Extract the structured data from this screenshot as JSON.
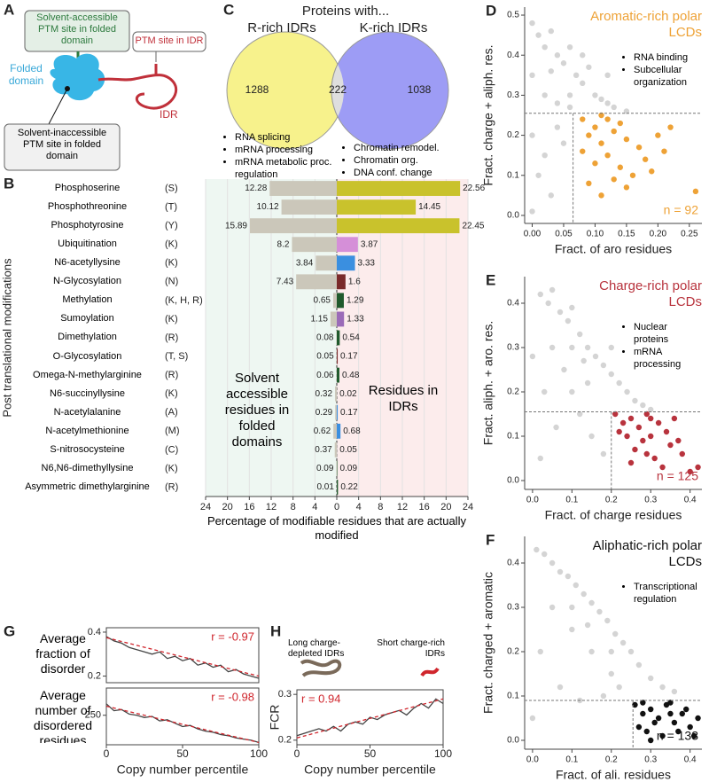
{
  "diagram": {
    "label": "A",
    "accessible_site": "Solvent-accessible PTM site in folded domain",
    "folded_domain": "Folded domain",
    "idr_site": "PTM site in IDR",
    "idr": "IDR",
    "inaccessible_site": "Solvent-inaccessible PTM site in folded domain"
  },
  "chart_data": [
    {
      "type": "bar",
      "panel_label": "B",
      "ylabel": "Post translational modifications",
      "xlabel": "Percentage of modifiable residues that are actually modified",
      "categories": [
        "Phosphoserine",
        "Phosphothreonine",
        "Phosphotyrosine",
        "Ubiquitination",
        "N6-acetyllysine",
        "N-Glycosylation",
        "Methylation",
        "Sumoylation",
        "Dimethylation",
        "O-Glycosylation",
        "Omega-N-methylarginine",
        "N6-succinyllysine",
        "N-acetylalanine",
        "N-acetylmethionine",
        "S-nitrosocysteine",
        "N6,N6-dimethyllysine",
        "Asymmetric dimethylarginine"
      ],
      "residue_codes": [
        "(S)",
        "(T)",
        "(Y)",
        "(K)",
        "(K)",
        "(N)",
        "(K, H, R)",
        "(K)",
        "(R)",
        "(T, S)",
        "(R)",
        "(K)",
        "(A)",
        "(M)",
        "(C)",
        "(K)",
        "(R)"
      ],
      "series": [
        {
          "name": "Solvent accessible residues in folded domains",
          "direction": "left",
          "color": "#cbc7ba",
          "values": [
            12.28,
            10.12,
            15.89,
            8.2,
            3.84,
            7.43,
            0.65,
            1.15,
            0.08,
            0.05,
            0.06,
            0.32,
            0.29,
            0.62,
            0.37,
            0.09,
            0.01
          ]
        },
        {
          "name": "Residues in IDRs",
          "direction": "right",
          "colors": [
            "#c9c22c",
            "#c9c22c",
            "#c9c22c",
            "#d58fd8",
            "#3a8fe0",
            "#7a2a2a",
            "#1f5a2c",
            "#9b6bb8",
            "#1f5a2c",
            "#7a2a2a",
            "#1f5a2c",
            "#aaaaaa",
            "#3a8fe0",
            "#3a8fe0",
            "#aaaaaa",
            "#1f5a2c",
            "#1f5a2c"
          ],
          "values": [
            22.56,
            14.45,
            22.45,
            3.87,
            3.33,
            1.6,
            1.29,
            1.33,
            0.54,
            0.17,
            0.48,
            0.02,
            0.17,
            0.68,
            0.05,
            0.09,
            0.22
          ]
        }
      ],
      "xlim": [
        -24,
        24
      ],
      "xticks": [
        {
          "value": -24,
          "label": "24"
        },
        {
          "value": -20,
          "label": "20"
        },
        {
          "value": -16,
          "label": "16"
        },
        {
          "value": -12,
          "label": "12"
        },
        {
          "value": -8,
          "label": "8"
        },
        {
          "value": -4,
          "label": "4"
        },
        0,
        4,
        8,
        12,
        16,
        20,
        24
      ],
      "grid": true
    },
    {
      "type": "venn",
      "panel_label": "C",
      "title": "Proteins with...",
      "sets": [
        {
          "name": "R-rich IDRs",
          "color": "#f7f28c",
          "notes": [
            "RNA splicing",
            "mRNA processing",
            "mRNA metabolic proc. regulation"
          ]
        },
        {
          "name": "K-rich IDRs",
          "color": "#9d9cf5",
          "notes": [
            "Chromatin remodel.",
            "Chromatin org.",
            "DNA conf. change"
          ]
        }
      ],
      "values": [
        1288,
        222,
        1038
      ],
      "overlap_color": "#dedede"
    },
    {
      "type": "scatter",
      "panel_label": "D",
      "title": "Aromatic-rich polar LCDs",
      "notes": [
        "RNA binding",
        "Subcellular organization"
      ],
      "annotation": "n = 92",
      "xlabel": "Fract. of aro residues",
      "ylabel": "Fract. charge + aliph. res.",
      "xlim": [
        -0.012,
        0.27
      ],
      "ylim": [
        -0.02,
        0.52
      ],
      "xticks": [
        {
          "value": 0,
          "label": "0.00"
        },
        0.05,
        {
          "value": 0.1,
          "label": "0.10"
        },
        0.15,
        {
          "value": 0.2,
          "label": "0.20"
        },
        0.25
      ],
      "yticks": [
        {
          "value": 0,
          "label": "0.0"
        },
        0.1,
        0.2,
        0.3,
        0.4,
        0.5
      ],
      "thresholds": {
        "x": 0.065,
        "y": 0.255
      },
      "series": [
        {
          "color": "#d4d4d4",
          "x": [
            0,
            0.01,
            0.02,
            0.03,
            0.04,
            0.05,
            0.06,
            0.07,
            0.08,
            0.09,
            0.1,
            0.11,
            0.12,
            0.13,
            0,
            0.02,
            0.04,
            0.06,
            0,
            0.02,
            0.04,
            0.01,
            0.03,
            0,
            0.05,
            0.15,
            0.12,
            0.08,
            0.03,
            0.06
          ],
          "values": [
            0.48,
            0.45,
            0.42,
            0.46,
            0.4,
            0.38,
            0.42,
            0.35,
            0.33,
            0.37,
            0.3,
            0.29,
            0.28,
            0.27,
            0.35,
            0.3,
            0.28,
            0.3,
            0.2,
            0.15,
            0.22,
            0.1,
            0.05,
            0.01,
            0.18,
            0.26,
            0.35,
            0.4,
            0.36,
            0.27
          ]
        },
        {
          "color": "#eea236",
          "x": [
            0.08,
            0.09,
            0.1,
            0.11,
            0.12,
            0.13,
            0.14,
            0.15,
            0.16,
            0.17,
            0.1,
            0.09,
            0.12,
            0.18,
            0.2,
            0.21,
            0.22,
            0.26,
            0.11,
            0.13,
            0.14,
            0.15,
            0.19,
            0.08,
            0.11
          ],
          "values": [
            0.24,
            0.2,
            0.22,
            0.18,
            0.15,
            0.21,
            0.12,
            0.19,
            0.1,
            0.17,
            0.13,
            0.08,
            0.24,
            0.14,
            0.2,
            0.16,
            0.22,
            0.06,
            0.05,
            0.09,
            0.23,
            0.07,
            0.11,
            0.16,
            0.25
          ]
        }
      ]
    },
    {
      "type": "scatter",
      "panel_label": "E",
      "title": "Charge-rich polar LCDs",
      "notes": [
        "Nuclear proteins",
        "mRNA processing"
      ],
      "annotation": "n = 125",
      "xlabel": "Fract. of charge residues",
      "ylabel": "Fract. aliph. + aro. res.",
      "xlim": [
        -0.02,
        0.43
      ],
      "ylim": [
        -0.02,
        0.46
      ],
      "xticks": [
        {
          "value": 0,
          "label": "0.0"
        },
        0.1,
        0.2,
        0.3,
        0.4
      ],
      "yticks": [
        {
          "value": 0,
          "label": "0.0"
        },
        0.1,
        0.2,
        0.3,
        0.4
      ],
      "thresholds": {
        "x": 0.2,
        "y": 0.155
      },
      "series": [
        {
          "color": "#d4d4d4",
          "x": [
            0.02,
            0.04,
            0.05,
            0.07,
            0.09,
            0.1,
            0.12,
            0.14,
            0.16,
            0.18,
            0.2,
            0.22,
            0.24,
            0.26,
            0.28,
            0.3,
            0.05,
            0.08,
            0.1,
            0.12,
            0.03,
            0.06,
            0.02,
            0,
            0.15,
            0.18,
            0.14,
            0.1,
            0.2,
            0.13
          ],
          "values": [
            0.42,
            0.4,
            0.43,
            0.38,
            0.36,
            0.39,
            0.33,
            0.3,
            0.28,
            0.26,
            0.24,
            0.22,
            0.2,
            0.18,
            0.17,
            0.16,
            0.3,
            0.25,
            0.2,
            0.15,
            0.2,
            0.12,
            0.05,
            0.28,
            0.1,
            0.06,
            0.22,
            0.3,
            0.3,
            0.27
          ]
        },
        {
          "color": "#b8333d",
          "x": [
            0.21,
            0.23,
            0.25,
            0.27,
            0.29,
            0.3,
            0.32,
            0.34,
            0.35,
            0.37,
            0.38,
            0.24,
            0.26,
            0.28,
            0.31,
            0.33,
            0.4,
            0.42,
            0.22,
            0.3,
            0.36,
            0.25,
            0.29
          ],
          "values": [
            0.15,
            0.13,
            0.14,
            0.12,
            0.15,
            0.1,
            0.13,
            0.11,
            0.08,
            0.09,
            0.06,
            0.1,
            0.07,
            0.09,
            0.05,
            0.03,
            0.02,
            0.03,
            0.11,
            0.14,
            0.14,
            0.04,
            0.06
          ]
        }
      ]
    },
    {
      "type": "scatter",
      "panel_label": "F",
      "title": "Aliphatic-rich polar LCDs",
      "notes": [
        "Transcriptional regulation"
      ],
      "annotation": "n = 133",
      "xlabel": "Fract. of ali. residues",
      "ylabel": "Fract. charged + aromatic",
      "xlim": [
        -0.02,
        0.43
      ],
      "ylim": [
        -0.02,
        0.46
      ],
      "xticks": [
        {
          "value": 0,
          "label": "0.0"
        },
        0.1,
        0.2,
        0.3,
        0.4
      ],
      "yticks": [
        {
          "value": 0,
          "label": "0.0"
        },
        0.1,
        0.2,
        0.3,
        0.4
      ],
      "thresholds": {
        "x": 0.255,
        "y": 0.09
      },
      "series": [
        {
          "color": "#d4d4d4",
          "x": [
            0.01,
            0.03,
            0.05,
            0.07,
            0.09,
            0.11,
            0.13,
            0.15,
            0.17,
            0.19,
            0.21,
            0.23,
            0.25,
            0.27,
            0.3,
            0.33,
            0.36,
            0.05,
            0.1,
            0.15,
            0.2,
            0.02,
            0.07,
            0.12,
            0.18,
            0,
            0.1,
            0.2,
            0.14,
            0.22
          ],
          "values": [
            0.43,
            0.42,
            0.4,
            0.38,
            0.37,
            0.35,
            0.33,
            0.31,
            0.29,
            0.27,
            0.24,
            0.22,
            0.2,
            0.17,
            0.14,
            0.12,
            0.11,
            0.3,
            0.25,
            0.2,
            0.15,
            0.2,
            0.12,
            0.09,
            0.1,
            0.05,
            0.3,
            0.2,
            0.26,
            0.12
          ]
        },
        {
          "color": "#111111",
          "x": [
            0.26,
            0.28,
            0.3,
            0.32,
            0.34,
            0.36,
            0.38,
            0.4,
            0.42,
            0.27,
            0.29,
            0.31,
            0.33,
            0.35,
            0.37,
            0.39,
            0.41,
            0.3,
            0.28,
            0.35
          ],
          "values": [
            0.08,
            0.06,
            0.07,
            0.05,
            0.08,
            0.04,
            0.06,
            0.03,
            0.05,
            0.03,
            0.02,
            0.04,
            0.01,
            0.06,
            0.02,
            0.07,
            0.01,
            0,
            0.085,
            0.085
          ]
        }
      ]
    },
    {
      "type": "line",
      "panel_label": "G",
      "ylabel": "Average fraction of disorder",
      "annotation": "r = -0.97",
      "xlim": [
        0,
        100
      ],
      "ylim": [
        0.17,
        0.42
      ],
      "yticks": [
        0.2,
        0.4
      ],
      "series": [
        {
          "color": "#444444",
          "x": [
            0,
            5,
            10,
            15,
            20,
            25,
            30,
            35,
            40,
            45,
            50,
            55,
            60,
            65,
            70,
            75,
            80,
            85,
            90,
            95,
            100
          ],
          "values": [
            0.38,
            0.36,
            0.35,
            0.33,
            0.32,
            0.31,
            0.3,
            0.31,
            0.28,
            0.29,
            0.27,
            0.28,
            0.25,
            0.26,
            0.24,
            0.25,
            0.22,
            0.23,
            0.21,
            0.2,
            0.19
          ]
        },
        {
          "color": "#d0262d",
          "dashed": true,
          "x": [
            0,
            100
          ],
          "values": [
            0.375,
            0.2
          ]
        }
      ]
    },
    {
      "type": "line",
      "ylabel": "Average number of disordered residues",
      "annotation": "r = -0.98",
      "xlabel": "Copy number percentile",
      "xlim": [
        0,
        100
      ],
      "xticks": [
        0,
        50,
        100
      ],
      "ylim": [
        120,
        370
      ],
      "yticks": [
        250
      ],
      "series": [
        {
          "color": "#444444",
          "x": [
            0,
            5,
            10,
            15,
            20,
            25,
            30,
            35,
            40,
            45,
            50,
            55,
            60,
            65,
            70,
            75,
            80,
            85,
            90,
            95,
            100
          ],
          "values": [
            300,
            270,
            275,
            255,
            250,
            240,
            245,
            225,
            230,
            215,
            200,
            205,
            190,
            180,
            175,
            165,
            160,
            150,
            145,
            140,
            130
          ]
        },
        {
          "color": "#d0262d",
          "dashed": true,
          "x": [
            0,
            100
          ],
          "values": [
            290,
            130
          ]
        }
      ]
    },
    {
      "type": "line",
      "panel_label": "H",
      "ylabel": "FCR",
      "annotation": "r = 0.94",
      "notes": [
        "Long charge-depleted IDRs",
        "Short charge-rich IDRs"
      ],
      "xlabel": "Copy number percentile",
      "xlim": [
        0,
        100
      ],
      "xticks": [
        0,
        50,
        100
      ],
      "ylim": [
        0.19,
        0.31
      ],
      "yticks": [
        0.2,
        0.3
      ],
      "series": [
        {
          "color": "#444444",
          "x": [
            0,
            5,
            10,
            15,
            20,
            25,
            30,
            35,
            40,
            45,
            50,
            55,
            60,
            65,
            70,
            75,
            80,
            85,
            90,
            95,
            100
          ],
          "values": [
            0.21,
            0.215,
            0.22,
            0.225,
            0.22,
            0.23,
            0.22,
            0.235,
            0.24,
            0.235,
            0.25,
            0.245,
            0.255,
            0.26,
            0.265,
            0.255,
            0.27,
            0.28,
            0.27,
            0.29,
            0.28
          ]
        },
        {
          "color": "#d0262d",
          "dashed": true,
          "x": [
            0,
            100
          ],
          "values": [
            0.205,
            0.29
          ]
        }
      ]
    }
  ]
}
